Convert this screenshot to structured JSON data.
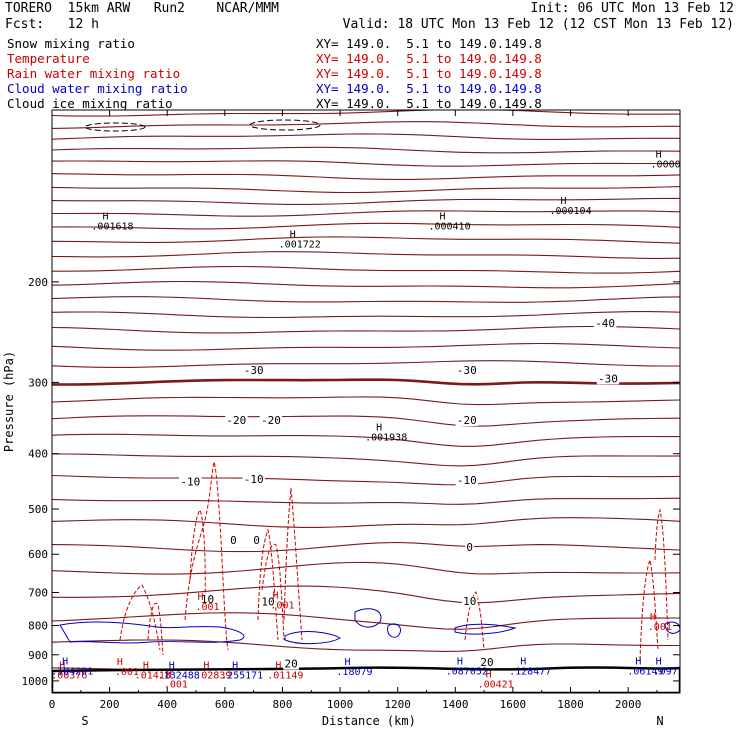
{
  "header": {
    "model": "TORERO  15km ARW   Run2    NCAR/MMM",
    "init": "Init: 06 UTC Mon 13 Feb 12",
    "fcst": "Fcst:   12 h",
    "valid": "Valid: 18 UTC Mon 13 Feb 12 (12 CST Mon 13 Feb 12)"
  },
  "legend": [
    {
      "name": "Snow mixing ratio",
      "xy": "XY= 149.0.  5.1 to 149.0.149.8",
      "color": "#000000"
    },
    {
      "name": "Temperature",
      "xy": "XY= 149.0.  5.1 to 149.0.149.8",
      "color": "#cc0000"
    },
    {
      "name": "Rain water mixing ratio",
      "xy": "XY= 149.0.  5.1 to 149.0.149.8",
      "color": "#cc0000"
    },
    {
      "name": "Cloud water mixing ratio",
      "xy": "XY= 149.0.  5.1 to 149.0.149.8",
      "color": "#0000bb"
    },
    {
      "name": "Cloud ice mixing ratio",
      "xy": "XY= 149.0.  5.1 to 149.0.149.8",
      "color": "#000000"
    }
  ],
  "chart_data": {
    "type": "line",
    "title": "",
    "xlabel": "Distance (km)",
    "ylabel": "Pressure (hPa)",
    "xlim": [
      0,
      2180
    ],
    "ylim": [
      1050,
      100
    ],
    "y_scale": "log",
    "x_ticks": [
      0,
      200,
      400,
      600,
      800,
      1000,
      1200,
      1400,
      1600,
      1800,
      2000
    ],
    "y_ticks": [
      200,
      300,
      400,
      500,
      600,
      700,
      800,
      900,
      1000
    ],
    "endpoints": {
      "left": "S",
      "right": "N"
    },
    "temperature_labels": [
      {
        "text": "-40",
        "x": 1920,
        "p": 240
      },
      {
        "text": "-30",
        "x": 700,
        "p": 290
      },
      {
        "text": "-30",
        "x": 1440,
        "p": 290
      },
      {
        "text": "-30",
        "x": 1930,
        "p": 300
      },
      {
        "text": "-20",
        "x": 640,
        "p": 355
      },
      {
        "text": "-20",
        "x": 760,
        "p": 355
      },
      {
        "text": "-20",
        "x": 1440,
        "p": 355
      },
      {
        "text": "-10",
        "x": 480,
        "p": 455
      },
      {
        "text": "-10",
        "x": 700,
        "p": 450
      },
      {
        "text": "-10",
        "x": 1440,
        "p": 452
      },
      {
        "text": "0",
        "x": 630,
        "p": 576
      },
      {
        "text": "0",
        "x": 710,
        "p": 576
      },
      {
        "text": "0",
        "x": 1450,
        "p": 592
      },
      {
        "text": "10",
        "x": 540,
        "p": 730
      },
      {
        "text": "10",
        "x": 750,
        "p": 738
      },
      {
        "text": "10",
        "x": 1450,
        "p": 737
      },
      {
        "text": "20",
        "x": 830,
        "p": 948
      },
      {
        "text": "20",
        "x": 1510,
        "p": 942
      }
    ],
    "maxima": [
      {
        "text": ".001618",
        "x": 210,
        "p": 162,
        "color": "#000000"
      },
      {
        "text": ".001722",
        "x": 860,
        "p": 174,
        "color": "#000000"
      },
      {
        "text": ".000410",
        "x": 1380,
        "p": 162,
        "color": "#000000"
      },
      {
        "text": ".000104",
        "x": 1800,
        "p": 152,
        "color": "#000000"
      },
      {
        "text": ".0000",
        "x": 2130,
        "p": 126,
        "color": "#000000"
      },
      {
        "text": ".001938",
        "x": 1160,
        "p": 379,
        "color": "#000000"
      },
      {
        "text": ".001",
        "x": 540,
        "p": 752,
        "color": "#cc0000"
      },
      {
        "text": ".001",
        "x": 800,
        "p": 747,
        "color": "#cc0000"
      },
      {
        "text": ".001",
        "x": 2110,
        "p": 815,
        "color": "#cc0000"
      },
      {
        "text": ".00376",
        "x": 60,
        "p": 990,
        "color": "#cc0000"
      },
      {
        "text": ".001",
        "x": 260,
        "p": 977,
        "color": "#cc0000"
      },
      {
        "text": ".01418",
        "x": 350,
        "p": 990,
        "color": "#cc0000"
      },
      {
        "text": ".02839",
        "x": 560,
        "p": 990,
        "color": "#cc0000"
      },
      {
        "text": ".01149",
        "x": 810,
        "p": 990,
        "color": "#cc0000"
      },
      {
        "text": ".001",
        "x": 430,
        "p": 1028,
        "color": "#cc0000"
      },
      {
        "text": ".00421",
        "x": 1540,
        "p": 1028,
        "color": "#cc0000"
      },
      {
        "text": ".184201",
        "x": 70,
        "p": 974,
        "color": "#0000bb"
      },
      {
        "text": ".132488",
        "x": 440,
        "p": 990,
        "color": "#0000bb"
      },
      {
        "text": ".255171",
        "x": 660,
        "p": 990,
        "color": "#0000bb"
      },
      {
        "text": ".18079",
        "x": 1050,
        "p": 976,
        "color": "#0000bb"
      },
      {
        "text": ".087052",
        "x": 1440,
        "p": 974,
        "color": "#0000bb"
      },
      {
        "text": ".128477",
        "x": 1660,
        "p": 974,
        "color": "#0000bb"
      },
      {
        "text": ".06149",
        "x": 2060,
        "p": 974,
        "color": "#0000bb"
      },
      {
        "text": ".097",
        "x": 2130,
        "p": 974,
        "color": "#0000bb"
      }
    ]
  }
}
